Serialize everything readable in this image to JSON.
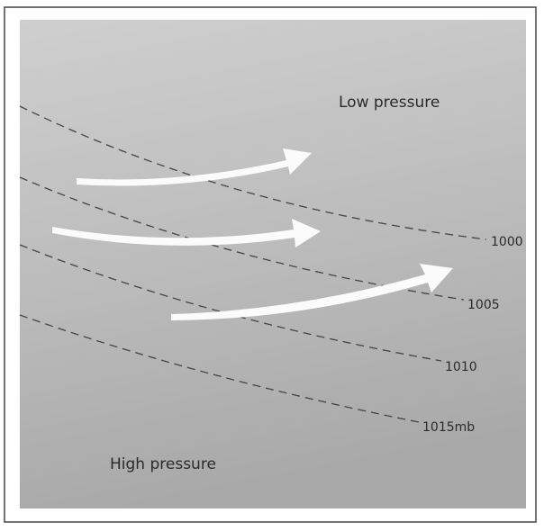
{
  "regions": {
    "low": "Low pressure",
    "high": "High pressure"
  },
  "isobars": [
    {
      "label": "1000"
    },
    {
      "label": "1005"
    },
    {
      "label": "1010"
    },
    {
      "label": "1015mb"
    }
  ]
}
